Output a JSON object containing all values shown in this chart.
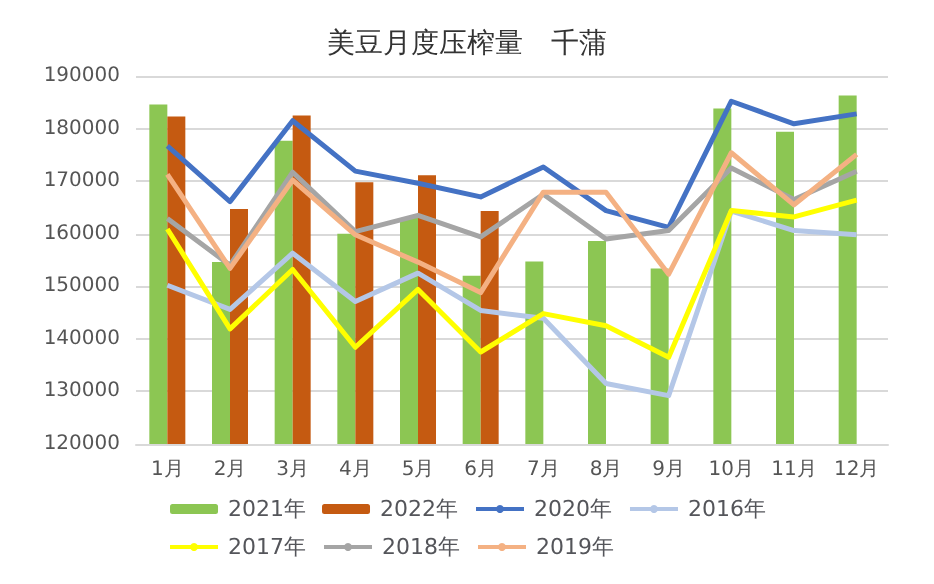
{
  "chart_data": {
    "type": "bar",
    "title": "美豆月度压榨量　千蒲",
    "categories": [
      "1月",
      "2月",
      "3月",
      "4月",
      "5月",
      "6月",
      "7月",
      "8月",
      "9月",
      "10月",
      "11月",
      "12月"
    ],
    "series": [
      {
        "name": "2021年",
        "color": "#8cc653",
        "values": [
          184600,
          154600,
          177700,
          160000,
          163000,
          152000,
          154700,
          158600,
          153400,
          183800,
          179400,
          186300
        ]
      },
      {
        "name": "2022年",
        "color": "#c55a11",
        "values": [
          182300,
          164700,
          182500,
          169800,
          171100,
          164300,
          null,
          null,
          null,
          null,
          null,
          null
        ]
      },
      {
        "name": "2020年",
        "type": "line",
        "color": "#4472c4",
        "values": [
          176700,
          166100,
          181500,
          171900,
          169600,
          167000,
          172700,
          164400,
          161200,
          185200,
          180900,
          182800
        ]
      },
      {
        "name": "2016年",
        "type": "line",
        "color": "#b4c7e7",
        "values": [
          150200,
          145600,
          156300,
          147100,
          152500,
          145400,
          143900,
          131500,
          129200,
          164300,
          160600,
          159800
        ]
      },
      {
        "name": "2017年",
        "type": "line",
        "color": "#ffff00",
        "values": [
          160900,
          141900,
          153200,
          138400,
          149400,
          137500,
          144800,
          142500,
          136500,
          164400,
          163200,
          166400
        ]
      },
      {
        "name": "2018年",
        "type": "line",
        "color": "#a5a5a5",
        "values": [
          162900,
          154000,
          171700,
          160400,
          163500,
          159400,
          167500,
          159000,
          160600,
          172500,
          166500,
          171900
        ]
      },
      {
        "name": "2019年",
        "type": "line",
        "color": "#f4b183",
        "values": [
          171300,
          153400,
          170200,
          159800,
          154600,
          148800,
          167900,
          167900,
          152300,
          175400,
          165500,
          175100
        ]
      }
    ],
    "ylim": [
      120000,
      190000
    ],
    "yticks": [
      120000,
      130000,
      140000,
      150000,
      160000,
      170000,
      180000,
      190000
    ],
    "grid": "y",
    "legend": "bottom",
    "marker": "none",
    "line_style": "solid"
  }
}
